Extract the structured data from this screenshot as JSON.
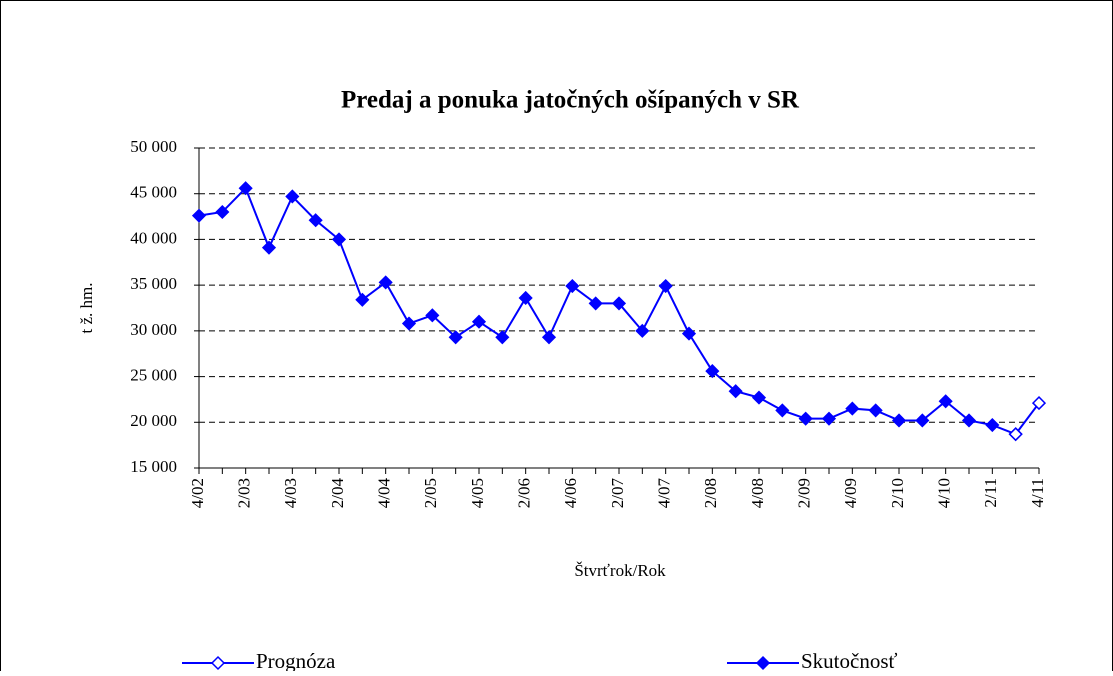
{
  "chart_data": {
    "type": "line",
    "title": "Predaj a ponuka jatočných ošípaných v SR",
    "y_label": "t ž. hm.",
    "x_label": "Štvrťrok/Rok",
    "categories": [
      "4/02",
      null,
      "2/03",
      null,
      "4/03",
      null,
      "2/04",
      null,
      "4/04",
      null,
      "2/05",
      null,
      "4/05",
      null,
      "2/06",
      null,
      "4/06",
      null,
      "2/07",
      null,
      "4/07",
      null,
      "2/08",
      null,
      "4/08",
      null,
      "2/09",
      null,
      "4/09",
      null,
      "2/10",
      null,
      "4/10",
      null,
      "2/11",
      null,
      "4/11"
    ],
    "series": [
      {
        "name": "Prognóza",
        "color": "#0000ff",
        "marker": "open",
        "values": [
          null,
          null,
          null,
          null,
          null,
          null,
          null,
          null,
          null,
          null,
          null,
          null,
          null,
          null,
          null,
          null,
          null,
          null,
          null,
          null,
          null,
          null,
          null,
          null,
          null,
          null,
          null,
          null,
          null,
          null,
          null,
          null,
          null,
          null,
          null,
          18700,
          22100
        ]
      },
      {
        "name": "Skutočnosť",
        "color": "#0000ff",
        "marker": "filled",
        "values": [
          42600,
          43000,
          45600,
          39100,
          44700,
          42100,
          40000,
          33400,
          35300,
          30800,
          31700,
          29300,
          31000,
          29300,
          33600,
          29300,
          34900,
          33000,
          33000,
          30000,
          34900,
          29700,
          25600,
          23400,
          22700,
          21300,
          20400,
          20400,
          21500,
          21300,
          20200,
          20200,
          22300,
          20200,
          19700,
          18700,
          null
        ]
      }
    ],
    "ylim": [
      15000,
      50000
    ],
    "yticks": [
      {
        "value": 15000,
        "label": "15 000"
      },
      {
        "value": 20000,
        "label": "20 000"
      },
      {
        "value": 25000,
        "label": "25 000"
      },
      {
        "value": 30000,
        "label": "30 000"
      },
      {
        "value": 35000,
        "label": "35 000"
      },
      {
        "value": 40000,
        "label": "40 000"
      },
      {
        "value": 45000,
        "label": "45 000"
      },
      {
        "value": 50000,
        "label": "50 000"
      }
    ],
    "grid": true
  }
}
